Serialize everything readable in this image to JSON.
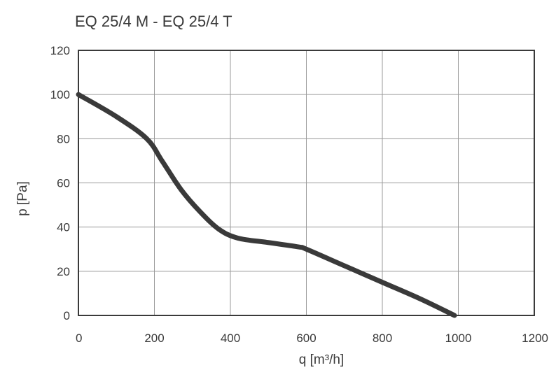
{
  "chart_data": {
    "type": "line",
    "title": "EQ 25/4 M - EQ 25/4 T",
    "xlabel": "q [m³/h]",
    "ylabel": "p [Pa]",
    "xlim": [
      0,
      1200
    ],
    "ylim": [
      0,
      120
    ],
    "xticks": [
      0,
      200,
      400,
      600,
      800,
      1000,
      1200
    ],
    "yticks": [
      0,
      20,
      40,
      60,
      80,
      100,
      120
    ],
    "xtick_labels": [
      "0",
      "200",
      "400",
      "600",
      "800",
      "1000",
      "1200"
    ],
    "ytick_labels": [
      "0",
      "20",
      "40",
      "60",
      "80",
      "100",
      "120"
    ],
    "grid": true,
    "series": [
      {
        "x": [
          0,
          100,
          180,
          220,
          270,
          320,
          370,
          420,
          500,
          580,
          600,
          700,
          800,
          900,
          990
        ],
        "y": [
          100,
          90,
          80,
          70,
          57,
          47,
          39,
          35,
          33,
          31,
          30,
          22.5,
          15,
          7.5,
          0
        ],
        "color": "#3a3a3a"
      }
    ]
  }
}
